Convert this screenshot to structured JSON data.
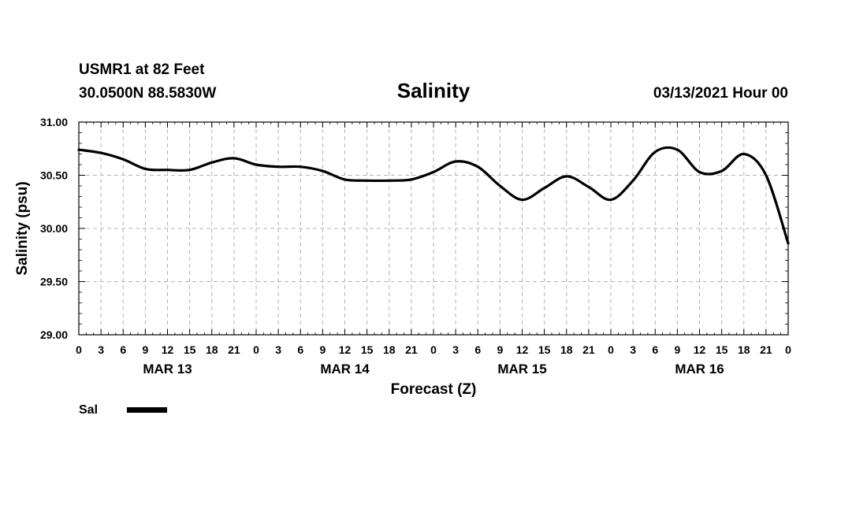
{
  "chart_data": {
    "type": "line",
    "title": "Salinity",
    "station": "USMR1 at 82 Feet",
    "location": "30.0500N 88.5830W",
    "run_time": "03/13/2021 Hour 00",
    "xlabel": "Forecast (Z)",
    "ylabel": "Salinity (psu)",
    "ylim": [
      29.0,
      31.0
    ],
    "yticks": [
      "29.00",
      "29.50",
      "30.00",
      "30.50",
      "31.00"
    ],
    "xlim": [
      0,
      96
    ],
    "xtick_labels": [
      "0",
      "3",
      "6",
      "9",
      "12",
      "15",
      "18",
      "21",
      "0",
      "3",
      "6",
      "9",
      "12",
      "15",
      "18",
      "21",
      "0",
      "3",
      "6",
      "9",
      "12",
      "15",
      "18",
      "21",
      "0",
      "3",
      "6",
      "9",
      "12",
      "15",
      "18",
      "21",
      "0"
    ],
    "day_labels": [
      "MAR 13",
      "MAR 14",
      "MAR 15",
      "MAR 16"
    ],
    "grid": true,
    "legend": [
      {
        "label": "Sal",
        "color": "#000000"
      }
    ],
    "series": [
      {
        "name": "Sal",
        "color": "#000000",
        "x": [
          0,
          3,
          6,
          9,
          12,
          15,
          18,
          21,
          24,
          27,
          30,
          33,
          36,
          39,
          42,
          45,
          48,
          51,
          54,
          57,
          60,
          63,
          66,
          69,
          72,
          75,
          78,
          81,
          84,
          87,
          90,
          93,
          96
        ],
        "values": [
          30.74,
          30.71,
          30.65,
          30.56,
          30.55,
          30.55,
          30.62,
          30.66,
          30.6,
          30.58,
          30.58,
          30.54,
          30.46,
          30.45,
          30.45,
          30.46,
          30.53,
          30.63,
          30.58,
          30.4,
          30.27,
          30.38,
          30.49,
          30.39,
          30.27,
          30.45,
          30.72,
          30.74,
          30.53,
          30.54,
          30.7,
          30.5,
          29.86
        ]
      }
    ]
  }
}
